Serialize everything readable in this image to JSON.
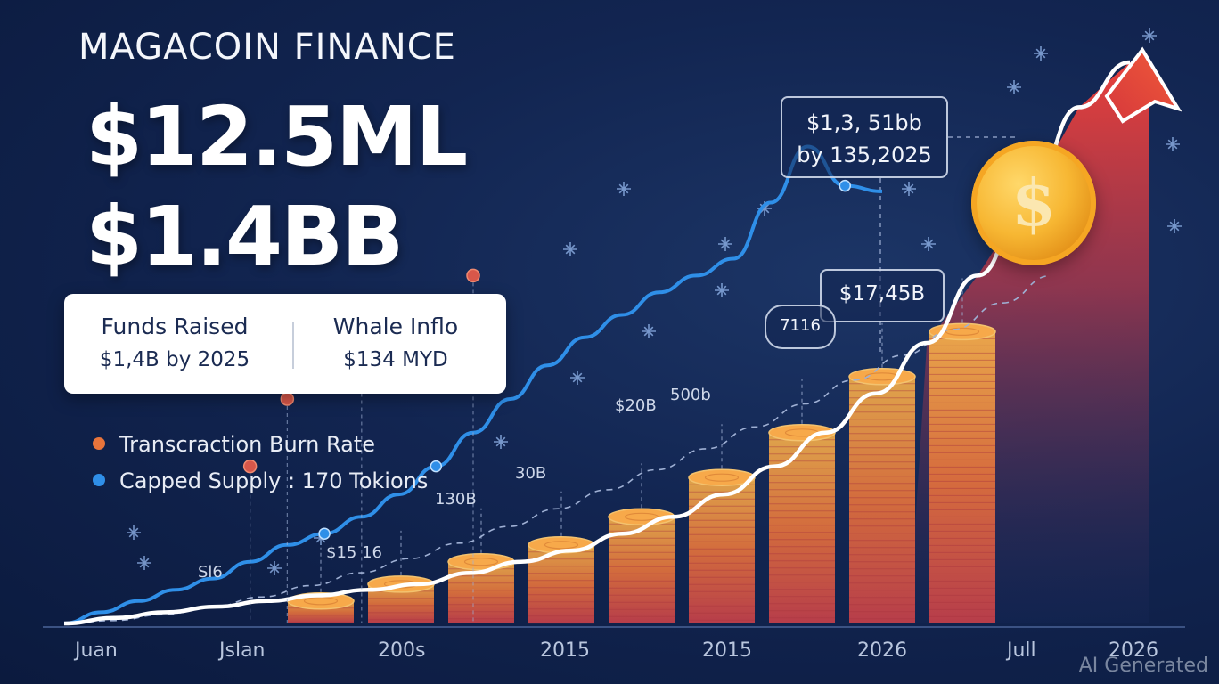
{
  "header": {
    "brand": "MAGACOIN FINANCE",
    "headline_1": "$12.5ML",
    "headline_2": "$1.4BB"
  },
  "card": {
    "left_title": "Funds Raised",
    "left_value": "$1,4B by 2025",
    "right_title": "Whale Inflo",
    "right_value": "$134 MYD"
  },
  "legend": [
    {
      "label": "Transcraction Burn Rate",
      "color": "#e8743b"
    },
    {
      "label": "Capped Supply : 170 Tokions",
      "color": "#2f8fe8"
    }
  ],
  "callouts": {
    "top_line1": "$1,3, 51bb",
    "top_line2": "by 135,2025",
    "mid": "$17,45B",
    "small": "7116"
  },
  "annotations": [
    "Sl6",
    "$15 16",
    "130B",
    "30B",
    "$20B",
    "500b"
  ],
  "coin_symbol": "$",
  "watermark": "AI Generated",
  "colors": {
    "background": "#122551",
    "blue_line": "#2f8fe8",
    "white_curve": "#ffffff",
    "arrow": "#e8403b",
    "orange_marker": "#d9574a",
    "coin_gold": "#f7b733"
  },
  "chart_data": {
    "type": "line",
    "x_tick_labels": [
      "Juan",
      "Jslan",
      "200s",
      "2015",
      "2015",
      "2026",
      "Jull",
      "2026"
    ],
    "ylim": [
      0,
      100
    ],
    "grid": false,
    "legend_position": "left",
    "series": [
      {
        "name": "Capped Supply : 170 Tokions",
        "style": "line",
        "values": [
          0,
          2,
          4,
          6,
          8,
          11,
          14,
          16,
          19,
          23,
          28,
          34,
          40,
          46,
          51,
          55,
          59,
          62,
          65,
          75,
          85,
          78,
          77
        ]
      },
      {
        "name": "Transcraction Burn Rate",
        "style": "markers",
        "points": [
          [
            5,
            28
          ],
          [
            6,
            40
          ],
          [
            8,
            55
          ],
          [
            11,
            62
          ]
        ]
      },
      {
        "name": "growth curve",
        "style": "curve",
        "values": [
          0,
          1,
          2,
          3,
          4,
          5,
          6,
          7,
          9,
          11,
          13,
          16,
          19,
          23,
          28,
          34,
          41,
          50,
          62,
          76,
          92,
          100
        ]
      },
      {
        "name": "coin stacks",
        "style": "bar",
        "values": [
          4,
          7,
          11,
          14,
          19,
          26,
          34,
          44,
          52
        ]
      }
    ]
  }
}
